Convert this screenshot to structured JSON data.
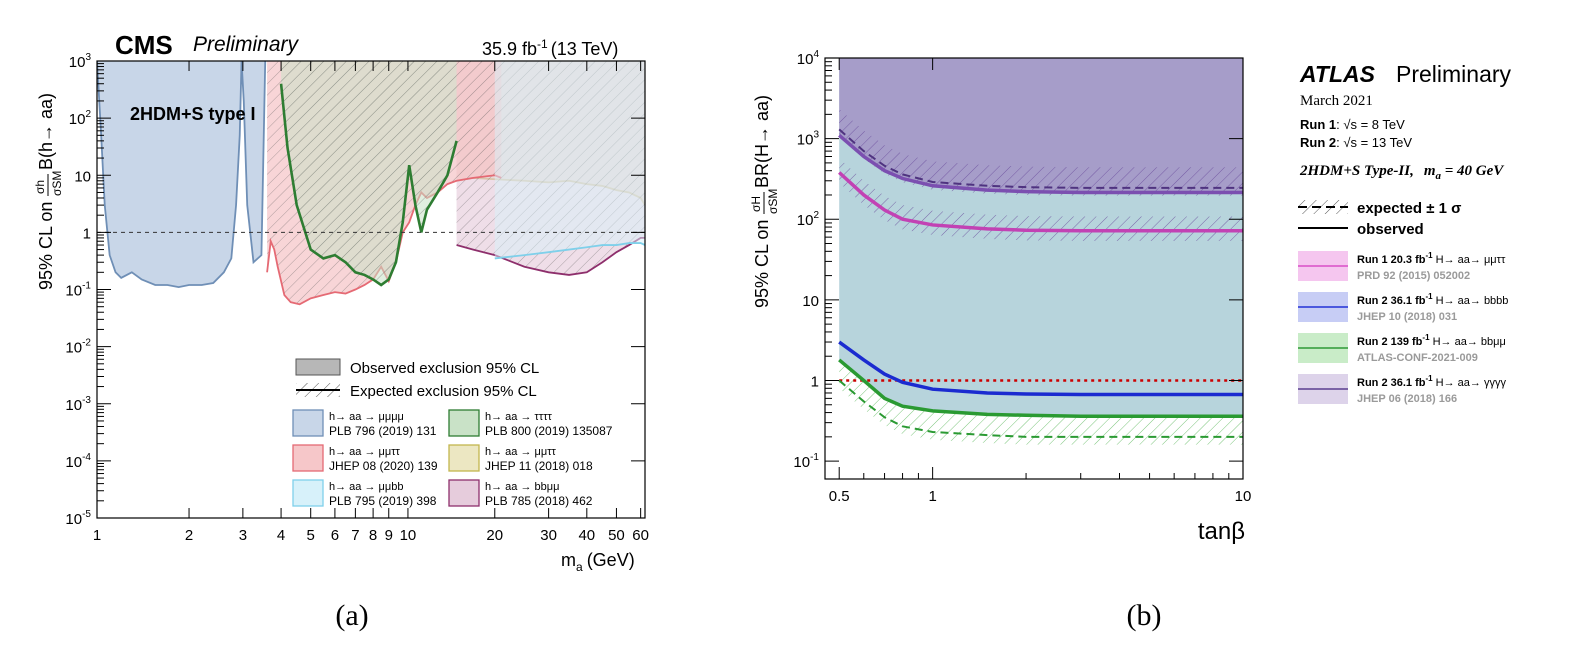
{
  "chart_data": [
    {
      "type": "area",
      "panel_label": "(a)",
      "experiment": "CMS",
      "status": "Preliminary",
      "lumi_label": "35.9 fb",
      "lumi_exp": "-1",
      "energy": "(13 TeV)",
      "model": "2HDM+S type I",
      "ylabel": "95% CL on",
      "ylabel_frac_num": "σh",
      "ylabel_frac_den": "σSM",
      "ylabel_br": "B(h→ aa)",
      "xlabel": "m",
      "xlabel_sub": "a",
      "xlabel_unit": "(GeV)",
      "xscale": "log",
      "yscale": "log",
      "xlim": [
        1,
        62
      ],
      "ylim": [
        1e-05,
        1000
      ],
      "x_ticks": [
        {
          "v": 1,
          "label": "1"
        },
        {
          "v": 2,
          "label": "2"
        },
        {
          "v": 3,
          "label": "3"
        },
        {
          "v": 4,
          "label": "4"
        },
        {
          "v": 5,
          "label": "5"
        },
        {
          "v": 6,
          "label": "6"
        },
        {
          "v": 7,
          "label": "7"
        },
        {
          "v": 8,
          "label": "8"
        },
        {
          "v": 9,
          "label": "9"
        },
        {
          "v": 10.4,
          "label": "10"
        },
        {
          "v": 20,
          "label": "20"
        },
        {
          "v": 30,
          "label": "30"
        },
        {
          "v": 40,
          "label": "40"
        },
        {
          "v": 50,
          "label": "50"
        },
        {
          "v": 60,
          "label": "60"
        }
      ],
      "y_ticks": [
        {
          "v": 1000,
          "base": "10",
          "exp": "3"
        },
        {
          "v": 100,
          "base": "10",
          "exp": "2"
        },
        {
          "v": 10,
          "base": "10",
          "exp": ""
        },
        {
          "v": 1,
          "base": "1",
          "exp": ""
        },
        {
          "v": 0.1,
          "base": "10",
          "exp": "-1"
        },
        {
          "v": 0.01,
          "base": "10",
          "exp": "-2"
        },
        {
          "v": 0.001,
          "base": "10",
          "exp": "-3"
        },
        {
          "v": 0.0001,
          "base": "10",
          "exp": "-4"
        },
        {
          "v": 1e-05,
          "base": "10",
          "exp": "-5"
        }
      ],
      "reference_line": 1,
      "legend_observed": "Observed exclusion 95% CL",
      "legend_expected": "Expected exclusion 95% CL",
      "legend_entries": [
        {
          "channel": "h→ aa → μμμμ",
          "ref": "PLB 796 (2019) 131",
          "color": "#c8d6e8",
          "edge": "#6f8fb6"
        },
        {
          "channel": "h→ aa → μμττ",
          "ref": "JHEP 08 (2020) 139",
          "color": "#f6c7c9",
          "edge": "#e56a74"
        },
        {
          "channel": "h→ aa → μμbb",
          "ref": "PLB 795 (2019) 398",
          "color": "#d7f1fa",
          "edge": "#7fd0ea"
        },
        {
          "channel": "h→ aa → ττττ",
          "ref": "PLB 800 (2019) 135087",
          "color": "#c9e2c7",
          "edge": "#2e7d32"
        },
        {
          "channel": "h→ aa → μμττ",
          "ref": "JHEP 11 (2018) 018",
          "color": "#ece7c2",
          "edge": "#c3b64e"
        },
        {
          "channel": "h→ aa → bbμμ",
          "ref": "PLB 785 (2018) 462",
          "color": "#e6ccdc",
          "edge": "#8e2f6c"
        }
      ],
      "series": [
        {
          "name": "h→aa→μμμμ observed",
          "color": "#c8d6e8",
          "edge": "#6f8fb6",
          "x": [
            1.0,
            1.03,
            1.06,
            1.1,
            1.15,
            1.2,
            1.3,
            1.4,
            1.55,
            1.7,
            1.85,
            2.0,
            2.2,
            2.4,
            2.6,
            2.75,
            2.85,
            2.93,
            2.97,
            3.02,
            3.1,
            3.25,
            3.45,
            3.55
          ],
          "y": [
            1000,
            60,
            3,
            0.4,
            0.2,
            0.16,
            0.2,
            0.15,
            0.12,
            0.12,
            0.11,
            0.12,
            0.12,
            0.13,
            0.2,
            0.35,
            3,
            50,
            1000,
            200,
            3,
            0.3,
            0.4,
            1000
          ]
        },
        {
          "name": "h→aa→μμττ (JHEP 08 (2020) 139) observed",
          "color": "#f6c7c9",
          "edge": "#e56a74",
          "x": [
            3.6,
            3.7,
            3.8,
            3.9,
            4.1,
            4.3,
            4.6,
            5.0,
            5.5,
            6.0,
            6.5,
            7.0,
            7.5,
            8.0,
            8.5,
            9.0,
            9.5,
            10.0,
            10.5,
            11.0,
            11.5,
            12.0,
            13.0,
            14.0,
            15.0,
            17.0,
            20.0,
            21.0
          ],
          "y": [
            0.2,
            0.7,
            0.5,
            0.25,
            0.08,
            0.06,
            0.055,
            0.07,
            0.08,
            0.09,
            0.085,
            0.1,
            0.12,
            0.15,
            0.25,
            0.14,
            0.3,
            1.0,
            1.5,
            3.0,
            5.0,
            4.0,
            5.0,
            7.0,
            8.0,
            9.0,
            10.0,
            9.0
          ]
        },
        {
          "name": "h→aa→ττττ observed",
          "color": "#c9e2c7",
          "edge": "#2e7d32",
          "x": [
            4.0,
            4.2,
            4.5,
            5.0,
            5.5,
            6.0,
            6.5,
            7.0,
            7.5,
            8.0,
            8.5,
            9.0,
            9.5,
            10.0,
            10.5,
            11.0,
            11.5,
            12.0,
            13.0,
            14.0,
            15.0
          ],
          "y": [
            400,
            30,
            3,
            0.5,
            0.35,
            0.4,
            0.3,
            0.2,
            0.18,
            0.15,
            0.12,
            0.15,
            0.3,
            1.5,
            15,
            3,
            1.0,
            2.5,
            5,
            10,
            40
          ]
        },
        {
          "name": "h→aa→μμττ (JHEP 11 (2018) 018) observed",
          "color": "#ece7c2",
          "edge": "#c3b64e",
          "x": [
            15.0,
            17.0,
            20.0,
            25.0,
            30.0,
            35.0,
            40.0,
            45.0,
            50.0,
            55.0,
            60.0,
            62.0
          ],
          "y": [
            8,
            9,
            8.5,
            8.0,
            7.5,
            8,
            7.0,
            6.5,
            5.5,
            5.0,
            4.0,
            3.0
          ]
        },
        {
          "name": "h→aa→bbμμ observed",
          "color": "#e6ccdc",
          "edge": "#8e2f6c",
          "x": [
            15.0,
            17.0,
            20.0,
            25.0,
            30.0,
            35.0,
            40.0,
            45.0,
            50.0,
            55.0,
            60.0,
            62.0
          ],
          "y": [
            0.6,
            0.5,
            0.4,
            0.25,
            0.2,
            0.18,
            0.2,
            0.3,
            0.45,
            0.6,
            0.8,
            0.8
          ]
        },
        {
          "name": "h→aa→μμbb observed",
          "color": "#d7f1fa",
          "edge": "#7fd0ea",
          "x": [
            20.0,
            25.0,
            30.0,
            35.0,
            40.0,
            45.0,
            50.0,
            55.0,
            60.0,
            62.0
          ],
          "y": [
            0.35,
            0.4,
            0.45,
            0.5,
            0.55,
            0.6,
            0.6,
            0.65,
            0.65,
            0.6
          ]
        }
      ]
    },
    {
      "type": "line",
      "panel_label": "(b)",
      "experiment": "ATLAS",
      "status": "Preliminary",
      "date": "March 2021",
      "run1_label": "Run 1",
      "run1_energy": ": √s = 8 TeV",
      "run2_label": "Run 2",
      "run2_energy": ": √s = 13 TeV",
      "model": "2HDM+S Type-II,",
      "model_mass": "m",
      "model_mass_sub": "a",
      "model_mass_val": " = 40 GeV",
      "ylabel": "95% CL on",
      "ylabel_frac_num": "σH",
      "ylabel_frac_den": "σSM",
      "ylabel_br": "BR(H→ aa)",
      "xlabel": "tanβ",
      "xscale": "log",
      "yscale": "log",
      "xlim": [
        0.45,
        10
      ],
      "ylim": [
        0.06,
        10000
      ],
      "x_ticks": [
        {
          "v": 0.5,
          "label": "0.5"
        },
        {
          "v": 1,
          "label": "1"
        },
        {
          "v": 10,
          "label": "10"
        }
      ],
      "y_ticks": [
        {
          "v": 10000,
          "base": "10",
          "exp": "4"
        },
        {
          "v": 1000,
          "base": "10",
          "exp": "3"
        },
        {
          "v": 100,
          "base": "10",
          "exp": "2"
        },
        {
          "v": 10,
          "base": "10",
          "exp": ""
        },
        {
          "v": 1,
          "base": "1",
          "exp": ""
        },
        {
          "v": 0.1,
          "base": "10",
          "exp": "-1"
        }
      ],
      "reference_line": 1,
      "legend_expected": "expected ± 1 σ",
      "legend_observed": "observed",
      "legend_entries": [
        {
          "label": "Run 1 20.3 fb",
          "exp": "-1",
          "channel": " H→ aa→ μμττ",
          "ref": "PRD 92 (2015) 052002",
          "color": "#f5c6ef",
          "line": "#d94fc7"
        },
        {
          "label": "Run 2 36.1 fb",
          "exp": "-1",
          "channel": " H→ aa→ bbbb",
          "ref": "JHEP 10 (2018) 031",
          "color": "#c7cdf5",
          "line": "#2232d6"
        },
        {
          "label": "Run 2 139 fb",
          "exp": "-1",
          "channel": " H→ aa→ bbμμ",
          "ref": "ATLAS-CONF-2021-009",
          "color": "#c9ecc8",
          "line": "#2e9a35"
        },
        {
          "label": "Run 2 36.1 fb",
          "exp": "-1",
          "channel": " H→ aa→ γγγγ",
          "ref": "JHEP 06 (2018) 166",
          "color": "#ddd3ea",
          "line": "#5b3e8f"
        }
      ],
      "series": [
        {
          "name": "Run 2 H→aa→γγγγ observed",
          "color": "#7b4fb0",
          "style": "solid",
          "x": [
            0.5,
            0.6,
            0.7,
            0.8,
            1.0,
            1.5,
            2.0,
            3.0,
            5.0,
            10.0
          ],
          "y": [
            1100,
            600,
            400,
            320,
            260,
            230,
            220,
            215,
            215,
            215
          ]
        },
        {
          "name": "Run 2 H→aa→γγγγ expected",
          "color": "#4f3380",
          "style": "dashed",
          "x": [
            0.5,
            0.6,
            0.7,
            0.8,
            1.0,
            1.5,
            2.0,
            3.0,
            5.0,
            10.0
          ],
          "y": [
            1300,
            700,
            460,
            360,
            290,
            260,
            250,
            245,
            245,
            245
          ]
        },
        {
          "name": "Run 1 H→aa→μμττ observed",
          "color": "#c242b4",
          "style": "solid",
          "x": [
            0.5,
            0.6,
            0.7,
            0.8,
            1.0,
            1.5,
            2.0,
            3.0,
            5.0,
            10.0
          ],
          "y": [
            380,
            200,
            130,
            100,
            85,
            76,
            73,
            72,
            72,
            72
          ]
        },
        {
          "name": "Run 2 H→aa→bbbb observed",
          "color": "#1b2bd0",
          "style": "solid",
          "x": [
            0.5,
            0.6,
            0.7,
            0.8,
            1.0,
            1.5,
            2.0,
            3.0,
            5.0,
            10.0
          ],
          "y": [
            3.0,
            1.8,
            1.2,
            0.95,
            0.78,
            0.7,
            0.68,
            0.67,
            0.67,
            0.67
          ]
        },
        {
          "name": "Run 2 H→aa→bbμμ observed",
          "color": "#2a9a32",
          "style": "solid",
          "x": [
            0.5,
            0.6,
            0.7,
            0.8,
            1.0,
            1.5,
            2.0,
            3.0,
            5.0,
            10.0
          ],
          "y": [
            1.8,
            1.0,
            0.6,
            0.48,
            0.42,
            0.38,
            0.37,
            0.36,
            0.36,
            0.36
          ]
        },
        {
          "name": "Run 2 H→aa→bbμμ expected",
          "color": "#2a9a32",
          "style": "dashed",
          "x": [
            0.5,
            0.6,
            0.7,
            0.8,
            1.0,
            1.5,
            2.0,
            3.0,
            5.0,
            10.0
          ],
          "y": [
            1.0,
            0.55,
            0.35,
            0.27,
            0.23,
            0.21,
            0.2,
            0.2,
            0.2,
            0.2
          ]
        }
      ]
    }
  ]
}
